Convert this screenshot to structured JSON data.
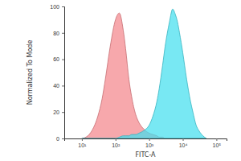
{
  "chart_data": {
    "type": "area",
    "x_label": "FITC-A",
    "y_label": "Normalized To Mode",
    "log": "x",
    "x": [
      10,
      15,
      20,
      30,
      40,
      50,
      70,
      100,
      130,
      170,
      200,
      250,
      300,
      400,
      500,
      700,
      1000,
      1300,
      1700,
      2000,
      2500,
      3000,
      4000,
      5000,
      6000,
      7000,
      8000,
      10000,
      13000,
      17000,
      20000,
      25000,
      30000,
      40000,
      50000
    ],
    "series": [
      {
        "color": "#f4868c",
        "values": [
          0,
          2,
          6,
          17,
          30,
          45,
          70,
          90,
          95,
          82,
          68,
          45,
          32,
          18,
          12,
          7,
          4,
          3,
          2,
          1,
          1,
          0,
          0,
          0,
          0,
          0,
          0,
          0,
          0,
          0,
          0,
          0,
          0,
          0,
          0
        ]
      },
      {
        "color": "#44dfee",
        "values": [
          0,
          0,
          0,
          0,
          0,
          0,
          0,
          0,
          1,
          2,
          2,
          2,
          3,
          3,
          4,
          6,
          10,
          17,
          28,
          38,
          55,
          70,
          88,
          98,
          94,
          88,
          80,
          65,
          45,
          28,
          20,
          10,
          6,
          2,
          0
        ]
      }
    ],
    "xlim": [
      3,
      200000
    ],
    "xticks": [
      {
        "value": 10,
        "label": "10¹"
      },
      {
        "value": 100,
        "label": "10²"
      },
      {
        "value": 1000,
        "label": "10³"
      },
      {
        "value": 10000,
        "label": "10⁴"
      },
      {
        "value": 100000,
        "label": "10⁵"
      }
    ],
    "ylim": [
      0,
      100
    ],
    "yticks": [
      0,
      20,
      40,
      60,
      80,
      100
    ]
  }
}
